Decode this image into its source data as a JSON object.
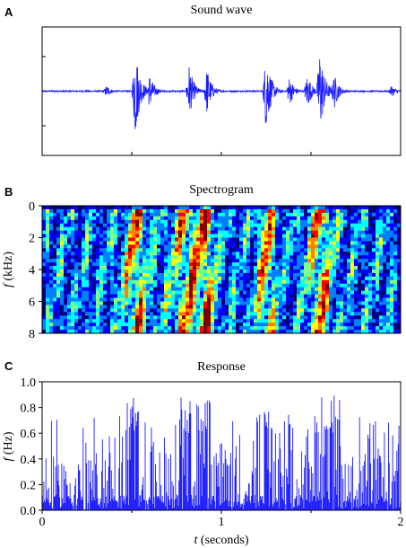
{
  "chart_data": [
    {
      "panel_letter": "A",
      "type": "line",
      "title": "Sound wave",
      "xlim": [
        0,
        2
      ],
      "color": "#1a1aff",
      "bursts": [
        {
          "t": 0.36,
          "amp": 0.1
        },
        {
          "t": 0.52,
          "amp": 0.8
        },
        {
          "t": 0.6,
          "amp": 0.3
        },
        {
          "t": 0.82,
          "amp": 0.45
        },
        {
          "t": 0.92,
          "amp": 0.4
        },
        {
          "t": 1.25,
          "amp": 0.7
        },
        {
          "t": 1.38,
          "amp": 0.25
        },
        {
          "t": 1.48,
          "amp": 0.3
        },
        {
          "t": 1.55,
          "amp": 0.75
        },
        {
          "t": 1.63,
          "amp": 0.3
        },
        {
          "t": 1.95,
          "amp": 0.1
        }
      ]
    },
    {
      "panel_letter": "B",
      "type": "heatmap",
      "title": "Spectrogram",
      "ylabel_var": "f",
      "ylabel_unit": " (kHz)",
      "ylim": [
        0,
        8
      ],
      "y_ticks": [
        "0",
        "2",
        "4",
        "6",
        "8"
      ],
      "xlim": [
        0,
        2
      ],
      "colormap": [
        "#00007f",
        "#0000ff",
        "#0080ff",
        "#00ffff",
        "#80ff80",
        "#ffff00",
        "#ff8000",
        "#ff0000",
        "#800000"
      ]
    },
    {
      "panel_letter": "C",
      "type": "bar",
      "title": "Response",
      "ylabel_var": "f",
      "ylabel_unit": " (Hz)",
      "ylim": [
        0,
        1.0
      ],
      "y_ticks": [
        "0.0",
        "0.2",
        "0.4",
        "0.6",
        "0.8",
        "1.0"
      ],
      "xlabel_var": "t",
      "xlabel_unit": " (seconds)",
      "x_ticks": [
        "0",
        "1",
        "2"
      ],
      "xlim": [
        0,
        2
      ],
      "color": "#1a1aff"
    }
  ]
}
